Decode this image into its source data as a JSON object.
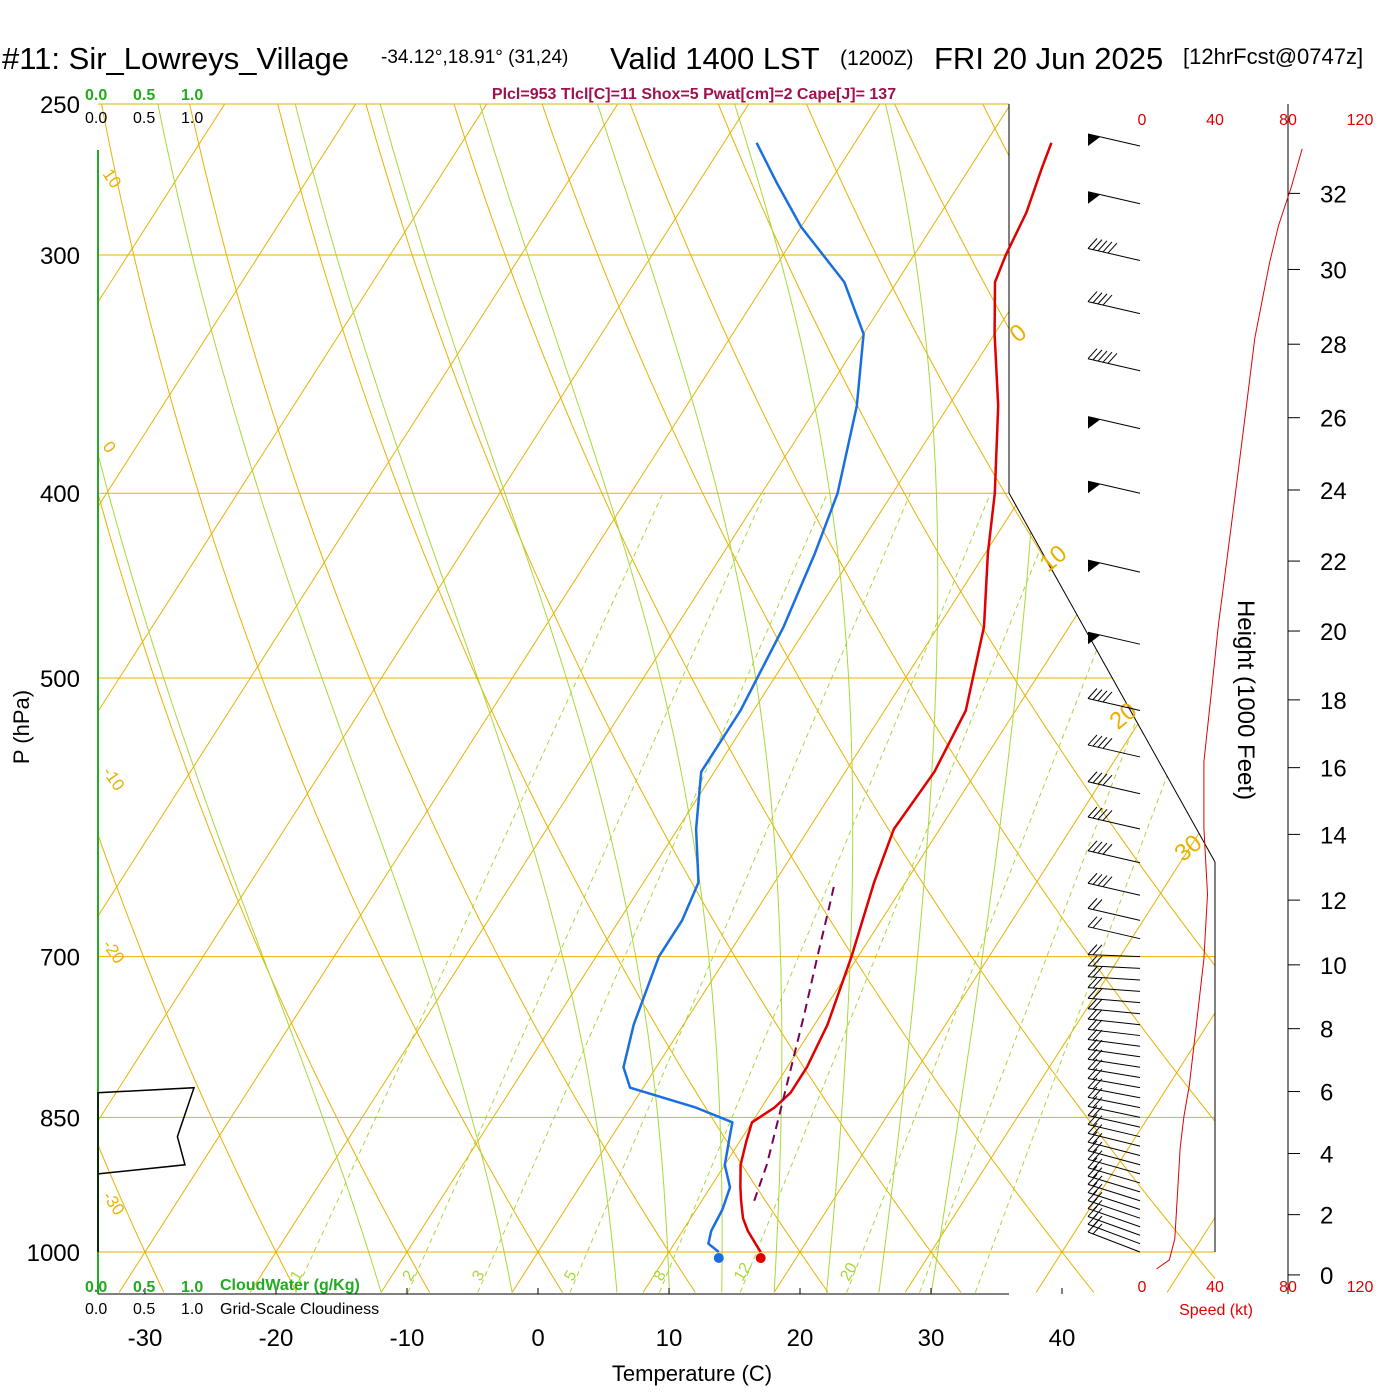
{
  "header": {
    "station": "#11: Sir_Lowreys_Village",
    "coords": "-34.12°,18.91° (31,24)",
    "valid": "Valid 1400 LST",
    "zulu": "(1200Z)",
    "date": "FRI 20 Jun 2025",
    "forecast": "[12hrFcst@0747z]"
  },
  "params_text": "Plcl=953 Tlcl[C]=11 Shox=5 Pwat[cm]=2 Cape[J]= 137",
  "colors": {
    "isotherm": "#e8b100",
    "mixing_ratio": "#a8d838",
    "temperature": "#e00000",
    "dewpoint": "#1a6fe0",
    "parcel": "#7a0055",
    "cloud": "#22aa22",
    "wind_speed": "#e00000"
  },
  "cloud_scale": {
    "ticks": [
      "0.0",
      "0.5",
      "1.0"
    ],
    "cloudwater_label": "CloudWater (g/Kg)",
    "cloudiness_label": "Grid-Scale Cloudiness"
  },
  "speed_scale": {
    "ticks": [
      "0",
      "40",
      "80",
      "120"
    ],
    "label": "Speed (kt)"
  },
  "chart_data": {
    "type": "line",
    "title": "",
    "xlabel": "Temperature (C)",
    "ylabel": "P (hPa)",
    "y2label": "Height (1000 Feet)",
    "x_ticks": [
      "-30",
      "-20",
      "-10",
      "0",
      "10",
      "20",
      "30",
      "40"
    ],
    "y_ticks": [
      "250",
      "300",
      "400",
      "500",
      "700",
      "850",
      "1000"
    ],
    "height_ticks": [
      "0",
      "2",
      "4",
      "6",
      "8",
      "10",
      "12",
      "14",
      "16",
      "18",
      "20",
      "22",
      "24",
      "26",
      "28",
      "30",
      "32"
    ],
    "xlim": [
      -34,
      42
    ],
    "ylim": [
      1050,
      250
    ],
    "skew_labels": [
      "10",
      "0",
      "-10",
      "-20",
      "-30"
    ],
    "isotherm_labels_right": [
      "0",
      "10",
      "20",
      "30"
    ],
    "mixing_ratio_labels": [
      "1",
      "2",
      "3",
      "5",
      "8",
      "12",
      "20"
    ],
    "series": [
      {
        "name": "Temperature",
        "points": [
          [
            1000,
            17.0
          ],
          [
            990,
            16.2
          ],
          [
            975,
            15.0
          ],
          [
            960,
            14.0
          ],
          [
            940,
            13.0
          ],
          [
            925,
            12.3
          ],
          [
            900,
            11.2
          ],
          [
            875,
            10.5
          ],
          [
            855,
            10.0
          ],
          [
            840,
            11.0
          ],
          [
            825,
            11.5
          ],
          [
            800,
            11.5
          ],
          [
            760,
            11.0
          ],
          [
            700,
            9.5
          ],
          [
            640,
            7.6
          ],
          [
            600,
            6.5
          ],
          [
            560,
            6.8
          ],
          [
            520,
            6.2
          ],
          [
            470,
            3.5
          ],
          [
            430,
            0.2
          ],
          [
            400,
            -2.2
          ],
          [
            360,
            -6.2
          ],
          [
            330,
            -10.0
          ],
          [
            310,
            -12.5
          ],
          [
            300,
            -13.0
          ],
          [
            285,
            -13.5
          ],
          [
            270,
            -14.5
          ],
          [
            262,
            -15.0
          ]
        ]
      },
      {
        "name": "Dewpoint",
        "points": [
          [
            1000,
            13.8
          ],
          [
            990,
            12.6
          ],
          [
            975,
            12.2
          ],
          [
            950,
            12.0
          ],
          [
            925,
            11.5
          ],
          [
            900,
            10.0
          ],
          [
            870,
            9.0
          ],
          [
            855,
            8.5
          ],
          [
            840,
            5.0
          ],
          [
            820,
            -1.0
          ],
          [
            800,
            -2.5
          ],
          [
            760,
            -3.8
          ],
          [
            700,
            -5.2
          ],
          [
            670,
            -5.2
          ],
          [
            640,
            -5.8
          ],
          [
            600,
            -8.6
          ],
          [
            560,
            -11.0
          ],
          [
            520,
            -11.0
          ],
          [
            470,
            -11.8
          ],
          [
            430,
            -13.0
          ],
          [
            400,
            -14.2
          ],
          [
            360,
            -17.0
          ],
          [
            330,
            -20.0
          ],
          [
            310,
            -24.0
          ],
          [
            290,
            -30.0
          ],
          [
            275,
            -34.0
          ],
          [
            262,
            -37.5
          ]
        ]
      },
      {
        "name": "Parcel",
        "points": [
          [
            940,
            14.0
          ],
          [
            900,
            13.2
          ],
          [
            850,
            11.8
          ],
          [
            800,
            10.3
          ],
          [
            750,
            8.7
          ],
          [
            700,
            6.9
          ],
          [
            660,
            5.4
          ],
          [
            640,
            4.6
          ]
        ]
      }
    ],
    "cloud_water_profile": [
      [
        1000,
        0.0
      ],
      [
        850,
        0.0
      ],
      [
        825,
        0.0
      ],
      [
        820,
        0.75
      ],
      [
        870,
        0.62
      ],
      [
        900,
        0.68
      ],
      [
        910,
        0.0
      ]
    ],
    "wind_speed_profile": [
      [
        0,
        8
      ],
      [
        0.3,
        15
      ],
      [
        1,
        18
      ],
      [
        2,
        19
      ],
      [
        3,
        20
      ],
      [
        4,
        21
      ],
      [
        5,
        23
      ],
      [
        6,
        26
      ],
      [
        8,
        30
      ],
      [
        10,
        34
      ],
      [
        12,
        36
      ],
      [
        14,
        34
      ],
      [
        16,
        34
      ],
      [
        18,
        38
      ],
      [
        20,
        42
      ],
      [
        22,
        47
      ],
      [
        24,
        52
      ],
      [
        26,
        57
      ],
      [
        28,
        62
      ],
      [
        30,
        70
      ],
      [
        31,
        75
      ],
      [
        32,
        82
      ],
      [
        33,
        88
      ]
    ],
    "wind_barbs": [
      {
        "p": 1000,
        "speed": 15
      },
      {
        "p": 990,
        "speed": 15
      },
      {
        "p": 980,
        "speed": 15
      },
      {
        "p": 970,
        "speed": 15
      },
      {
        "p": 960,
        "speed": 15
      },
      {
        "p": 950,
        "speed": 15
      },
      {
        "p": 940,
        "speed": 15
      },
      {
        "p": 930,
        "speed": 15
      },
      {
        "p": 920,
        "speed": 15
      },
      {
        "p": 910,
        "speed": 15
      },
      {
        "p": 900,
        "speed": 15
      },
      {
        "p": 890,
        "speed": 15
      },
      {
        "p": 880,
        "speed": 15
      },
      {
        "p": 870,
        "speed": 15
      },
      {
        "p": 860,
        "speed": 15
      },
      {
        "p": 850,
        "speed": 15
      },
      {
        "p": 840,
        "speed": 15
      },
      {
        "p": 830,
        "speed": 15
      },
      {
        "p": 820,
        "speed": 15
      },
      {
        "p": 810,
        "speed": 15
      },
      {
        "p": 800,
        "speed": 15
      },
      {
        "p": 790,
        "speed": 15
      },
      {
        "p": 780,
        "speed": 15
      },
      {
        "p": 770,
        "speed": 15
      },
      {
        "p": 760,
        "speed": 15
      },
      {
        "p": 750,
        "speed": 15
      },
      {
        "p": 740,
        "speed": 15
      },
      {
        "p": 730,
        "speed": 15
      },
      {
        "p": 720,
        "speed": 15
      },
      {
        "p": 710,
        "speed": 15
      },
      {
        "p": 700,
        "speed": 20
      },
      {
        "p": 685,
        "speed": 20
      },
      {
        "p": 670,
        "speed": 20
      },
      {
        "p": 650,
        "speed": 35
      },
      {
        "p": 625,
        "speed": 35
      },
      {
        "p": 600,
        "speed": 35
      },
      {
        "p": 575,
        "speed": 35
      },
      {
        "p": 550,
        "speed": 35
      },
      {
        "p": 520,
        "speed": 35
      },
      {
        "p": 480,
        "speed": 50
      },
      {
        "p": 440,
        "speed": 50
      },
      {
        "p": 400,
        "speed": 50
      },
      {
        "p": 370,
        "speed": 50
      },
      {
        "p": 345,
        "speed": 45
      },
      {
        "p": 322,
        "speed": 40
      },
      {
        "p": 302,
        "speed": 45
      },
      {
        "p": 282,
        "speed": 55
      },
      {
        "p": 263,
        "speed": 55
      }
    ]
  }
}
